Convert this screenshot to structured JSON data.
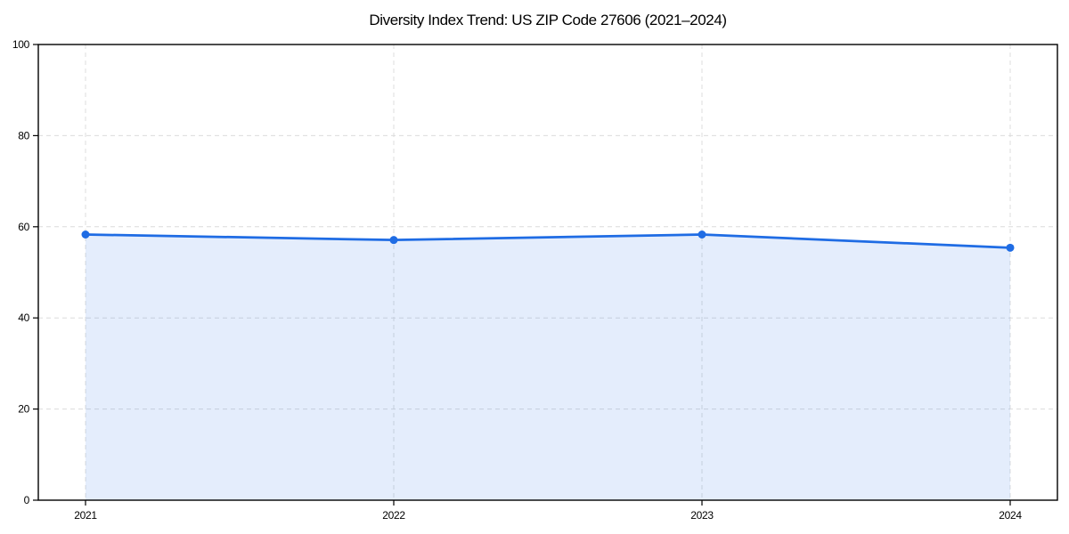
{
  "chart_data": {
    "type": "line",
    "title": "Diversity Index Trend: US ZIP Code 27606 (2021–2024)",
    "x": [
      "2021",
      "2022",
      "2023",
      "2024"
    ],
    "series": [
      {
        "name": "Diversity Index",
        "values": [
          58.3,
          57.1,
          58.3,
          55.4
        ]
      }
    ],
    "xlabel": "",
    "ylabel": "",
    "ylim": [
      0,
      100
    ],
    "yticks": [
      0,
      20,
      40,
      60,
      80,
      100
    ],
    "grid": true,
    "grid_style": "dashed",
    "legend": false,
    "colors": {
      "line": "#1f6ce4",
      "marker": "#1f6ce4",
      "area_fill": "rgba(31,108,228,0.12)",
      "gridline": "#dcdcdc",
      "spine": "#000000",
      "background": "#ffffff"
    }
  }
}
